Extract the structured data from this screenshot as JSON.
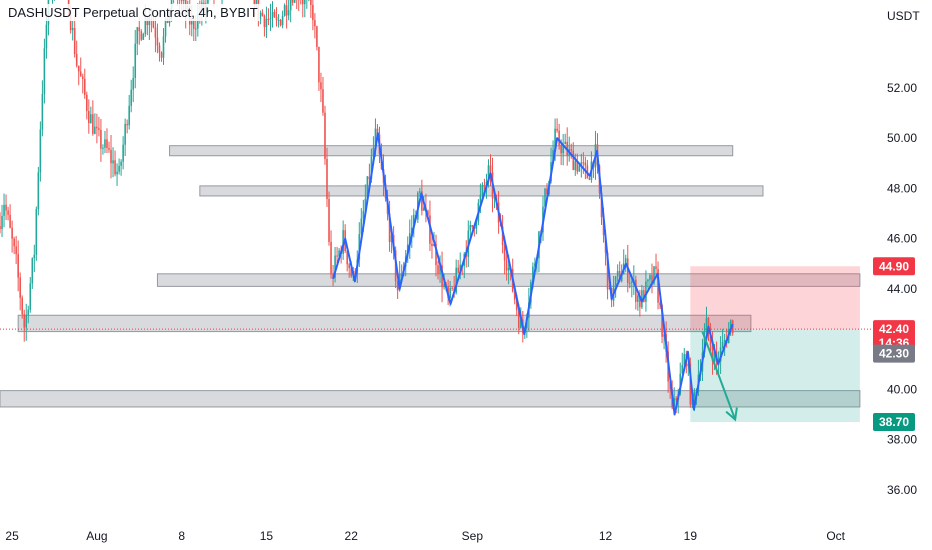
{
  "header": {
    "title": "DASHUSDT Perpetual Contract, 4h, BYBIT"
  },
  "chart_data": {
    "type": "candlestick",
    "symbol": "DASHUSDT Perpetual Contract",
    "interval": "4h",
    "exchange": "BYBIT",
    "y_axis": {
      "unit_label": "USDT",
      "range": [
        34.8,
        55.5
      ],
      "ticks": [
        52.0,
        50.0,
        48.0,
        46.0,
        44.0,
        40.0,
        38.0,
        36.0
      ]
    },
    "x_axis": {
      "range_days": [
        -1.0,
        71.0
      ],
      "ticks": [
        {
          "label": "25",
          "day": 0
        },
        {
          "label": "Aug",
          "day": 7
        },
        {
          "label": "8",
          "day": 14
        },
        {
          "label": "15",
          "day": 21
        },
        {
          "label": "22",
          "day": 28
        },
        {
          "label": "Sep",
          "day": 38
        },
        {
          "label": "12",
          "day": 49
        },
        {
          "label": "19",
          "day": 56
        },
        {
          "label": "Oct",
          "day": 68
        }
      ]
    },
    "colors": {
      "up": "#26a69a",
      "down": "#ef5350",
      "zigzag": "#2962ff",
      "zone": "#b2b5be",
      "short_stop": "#f7525f",
      "short_target": "#22ab94"
    },
    "zigzag": [
      {
        "day": 26.5,
        "price": 44.4
      },
      {
        "day": 27.5,
        "price": 46.0
      },
      {
        "day": 28.3,
        "price": 44.3
      },
      {
        "day": 30.2,
        "price": 50.2
      },
      {
        "day": 32.0,
        "price": 44.0
      },
      {
        "day": 33.8,
        "price": 47.8
      },
      {
        "day": 36.2,
        "price": 43.4
      },
      {
        "day": 39.5,
        "price": 48.6
      },
      {
        "day": 42.3,
        "price": 42.2
      },
      {
        "day": 45.0,
        "price": 50.0
      },
      {
        "day": 47.7,
        "price": 48.5
      },
      {
        "day": 48.3,
        "price": 49.5
      },
      {
        "day": 49.5,
        "price": 43.6
      },
      {
        "day": 50.7,
        "price": 45.0
      },
      {
        "day": 52.0,
        "price": 43.5
      },
      {
        "day": 53.3,
        "price": 44.6
      },
      {
        "day": 54.7,
        "price": 39.0
      },
      {
        "day": 55.8,
        "price": 41.5
      },
      {
        "day": 56.3,
        "price": 39.2
      },
      {
        "day": 57.5,
        "price": 42.5
      },
      {
        "day": 58.3,
        "price": 41.0
      },
      {
        "day": 59.5,
        "price": 42.6
      }
    ],
    "zones": [
      {
        "day_start": 13.0,
        "day_end": 59.5,
        "low": 49.3,
        "high": 49.7
      },
      {
        "day_start": 15.5,
        "day_end": 62.0,
        "low": 47.7,
        "high": 48.1
      },
      {
        "day_start": 12.0,
        "day_end": 70.0,
        "low": 44.1,
        "high": 44.6
      },
      {
        "day_start": 0.5,
        "day_end": 61.0,
        "low": 42.3,
        "high": 42.95
      },
      {
        "day_start": -1.0,
        "day_end": 70.0,
        "low": 39.3,
        "high": 39.95
      }
    ],
    "position": {
      "side": "short",
      "day_start": 56.0,
      "day_end": 70.0,
      "entry": 42.4,
      "stop": 44.9,
      "target": 38.7,
      "arrow_from": {
        "day": 57.0,
        "price": 42.3
      },
      "arrow_to": {
        "day": 59.7,
        "price": 38.8
      }
    },
    "price_labels": [
      {
        "label": "44.90",
        "value": 44.9,
        "color": "#f23645"
      },
      {
        "label": "42.40",
        "value": 42.4,
        "color": "#f23645",
        "sub": "14:36"
      },
      {
        "label": "42.30",
        "value": 42.3,
        "color": "#787b86"
      },
      {
        "label": "38.70",
        "value": 38.7,
        "color": "#089981"
      }
    ],
    "current_price_line": 42.4
  }
}
